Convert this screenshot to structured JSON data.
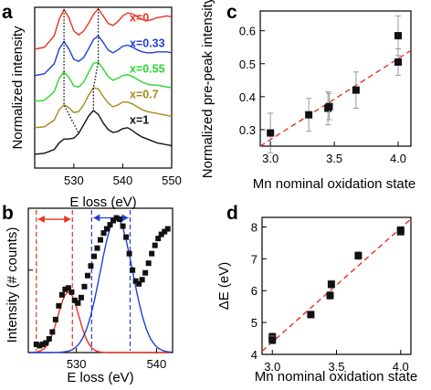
{
  "panels": {
    "a": {
      "letter": "a",
      "ylabel": "Normalized intensity",
      "xlabel": "E loss (eV)",
      "xticks": [
        "530",
        "540",
        "550"
      ]
    },
    "b": {
      "letter": "b",
      "ylabel": "Intensity (# counts)",
      "xlabel": "E loss (eV)",
      "xticks": [
        "530",
        "540"
      ]
    },
    "c": {
      "letter": "c",
      "ylabel": "Normalized pre-peak intensity",
      "xlabel": "Mn nominal oxidation state",
      "xticks": [
        "3.0",
        "3.5",
        "4.0"
      ],
      "yticks": [
        "0.3",
        "0.4",
        "0.5",
        "0.6"
      ]
    },
    "d": {
      "letter": "d",
      "ylabel": "ΔE (eV)",
      "xlabel": "Mn nominal oxidation state",
      "xticks": [
        "3.0",
        "3.5",
        "4.0"
      ],
      "yticks": [
        "4",
        "5",
        "6",
        "7",
        "8"
      ]
    }
  },
  "chart_data": [
    {
      "panel": "a",
      "type": "line",
      "title": "",
      "xlabel": "E loss (eV)",
      "ylabel": "Normalized intensity",
      "xlim": [
        522,
        550
      ],
      "series": [
        {
          "name": "x=0",
          "color": "#e8321e",
          "offset": 4,
          "x": [
            522,
            524,
            526,
            527,
            528,
            529,
            530,
            531,
            532,
            533,
            534,
            535,
            536,
            537,
            538,
            539,
            540,
            541,
            542,
            543,
            544,
            545,
            546,
            547,
            548,
            549,
            550
          ],
          "y": [
            0.12,
            0.16,
            0.4,
            0.75,
            0.95,
            0.78,
            0.5,
            0.42,
            0.5,
            0.66,
            0.85,
            0.97,
            0.82,
            0.66,
            0.62,
            0.7,
            0.82,
            0.88,
            0.86,
            0.8,
            0.74,
            0.72,
            0.74,
            0.78,
            0.8,
            0.82,
            0.8
          ]
        },
        {
          "name": "x=0.33",
          "color": "#1f3fd6",
          "offset": 3,
          "x": [
            522,
            524,
            526,
            527,
            528,
            529,
            530,
            531,
            532,
            533,
            534,
            535,
            536,
            537,
            538,
            539,
            540,
            541,
            542,
            543,
            544,
            545,
            546,
            547,
            548,
            549,
            550
          ],
          "y": [
            0.1,
            0.14,
            0.35,
            0.66,
            0.82,
            0.66,
            0.44,
            0.4,
            0.48,
            0.66,
            0.86,
            0.94,
            0.8,
            0.64,
            0.58,
            0.64,
            0.72,
            0.74,
            0.7,
            0.64,
            0.6,
            0.58,
            0.58,
            0.6,
            0.6,
            0.6,
            0.58
          ]
        },
        {
          "name": "x=0.55",
          "color": "#2bd62b",
          "offset": 2,
          "x": [
            522,
            524,
            526,
            527,
            528,
            529,
            530,
            531,
            532,
            533,
            534,
            535,
            536,
            537,
            538,
            539,
            540,
            541,
            542,
            543,
            544,
            545,
            546,
            547,
            548,
            549,
            550
          ],
          "y": [
            0.1,
            0.12,
            0.3,
            0.58,
            0.72,
            0.6,
            0.42,
            0.4,
            0.5,
            0.7,
            0.9,
            0.92,
            0.78,
            0.62,
            0.54,
            0.58,
            0.64,
            0.66,
            0.62,
            0.56,
            0.5,
            0.46,
            0.44,
            0.44,
            0.42,
            0.4,
            0.38
          ]
        },
        {
          "name": "x=0.7",
          "color": "#a58a1c",
          "offset": 1,
          "x": [
            522,
            524,
            526,
            527,
            528,
            529,
            530,
            531,
            532,
            533,
            534,
            535,
            536,
            537,
            538,
            539,
            540,
            541,
            542,
            543,
            544,
            545,
            546,
            547,
            548,
            549,
            550
          ],
          "y": [
            0.08,
            0.1,
            0.24,
            0.46,
            0.56,
            0.5,
            0.4,
            0.42,
            0.56,
            0.76,
            0.92,
            0.9,
            0.74,
            0.6,
            0.52,
            0.56,
            0.62,
            0.62,
            0.58,
            0.52,
            0.46,
            0.42,
            0.4,
            0.38,
            0.36,
            0.34,
            0.32
          ]
        },
        {
          "name": "x=1",
          "color": "#111111",
          "offset": 0,
          "x": [
            522,
            524,
            526,
            527,
            528,
            529,
            530,
            531,
            532,
            533,
            534,
            535,
            536,
            537,
            538,
            539,
            540,
            541,
            542,
            543,
            544,
            545,
            546,
            547,
            548,
            549,
            550
          ],
          "y": [
            0.06,
            0.08,
            0.16,
            0.3,
            0.38,
            0.38,
            0.4,
            0.5,
            0.68,
            0.86,
            0.98,
            0.9,
            0.72,
            0.58,
            0.52,
            0.54,
            0.6,
            0.62,
            0.56,
            0.48,
            0.42,
            0.38,
            0.34,
            0.3,
            0.28,
            0.26,
            0.24
          ]
        }
      ]
    },
    {
      "panel": "b",
      "type": "scatter",
      "title": "",
      "xlabel": "E loss (eV)",
      "ylabel": "Intensity (# counts)",
      "xlim": [
        524,
        542
      ],
      "measured": {
        "color": "#111111",
        "x": [
          525,
          525.4,
          525.8,
          526.2,
          526.6,
          527,
          527.4,
          527.8,
          528.2,
          528.6,
          529,
          529.4,
          529.8,
          530.2,
          530.6,
          531,
          531.4,
          531.8,
          532.2,
          532.6,
          533,
          533.4,
          533.8,
          534.2,
          534.6,
          535,
          535.4,
          535.8,
          536.2,
          536.6,
          537,
          537.4,
          537.8,
          538.2,
          538.6,
          539,
          539.4,
          539.8,
          540.2,
          540.6,
          541,
          541.4
        ],
        "y": [
          0.06,
          0.05,
          0.06,
          0.07,
          0.1,
          0.15,
          0.24,
          0.34,
          0.42,
          0.46,
          0.47,
          0.44,
          0.38,
          0.36,
          0.4,
          0.48,
          0.56,
          0.63,
          0.7,
          0.76,
          0.82,
          0.87,
          0.9,
          0.93,
          0.96,
          0.98,
          0.97,
          0.92,
          0.84,
          0.72,
          0.6,
          0.52,
          0.5,
          0.53,
          0.58,
          0.65,
          0.72,
          0.78,
          0.83,
          0.86,
          0.88,
          0.9
        ]
      },
      "fits": [
        {
          "color": "#e8321e",
          "center": 529.0,
          "sigma": 1.3,
          "amplitude": 0.44
        },
        {
          "color": "#1f3fd6",
          "center": 535.0,
          "sigma": 2.0,
          "amplitude": 0.98
        }
      ],
      "markers": [
        {
          "color": "#e8321e",
          "x1": 525.0,
          "x2": 529.5
        },
        {
          "color": "#1f3fd6",
          "x1": 531.9,
          "x2": 536.7
        }
      ]
    },
    {
      "panel": "c",
      "type": "scatter",
      "title": "",
      "xlabel": "Mn nominal oxidation state",
      "ylabel": "Normalized pre-peak intensity",
      "xlim": [
        2.92,
        4.1
      ],
      "ylim": [
        0.25,
        0.66
      ],
      "points": [
        {
          "x": 3.0,
          "y": 0.29,
          "err": 0.06
        },
        {
          "x": 3.3,
          "y": 0.345,
          "err": 0.05
        },
        {
          "x": 3.45,
          "y": 0.365,
          "err": 0.05
        },
        {
          "x": 3.46,
          "y": 0.37,
          "err": 0.04
        },
        {
          "x": 3.67,
          "y": 0.42,
          "err": 0.055
        },
        {
          "x": 4.0,
          "y": 0.585,
          "err": 0.06
        },
        {
          "x": 4.0,
          "y": 0.505,
          "err": 0.04
        }
      ],
      "fit": {
        "color": "#e8321e",
        "x1": 2.92,
        "y1": 0.25,
        "x2": 4.1,
        "y2": 0.54
      }
    },
    {
      "panel": "d",
      "type": "scatter",
      "title": "",
      "xlabel": "Mn nominal oxidation state",
      "ylabel": "ΔE (eV)",
      "xlim": [
        2.92,
        4.08
      ],
      "ylim": [
        4.0,
        8.3
      ],
      "points": [
        {
          "x": 3.0,
          "y": 4.55,
          "err": 0.12
        },
        {
          "x": 3.0,
          "y": 4.45,
          "err": 0.12
        },
        {
          "x": 3.3,
          "y": 5.25,
          "err": 0.1
        },
        {
          "x": 3.45,
          "y": 5.85,
          "err": 0.12
        },
        {
          "x": 3.46,
          "y": 6.2,
          "err": 0.12
        },
        {
          "x": 3.67,
          "y": 7.1,
          "err": 0.12
        },
        {
          "x": 4.0,
          "y": 7.85,
          "err": 0.08
        },
        {
          "x": 4.0,
          "y": 7.9,
          "err": 0.1
        }
      ],
      "fit": {
        "color": "#e8321e",
        "x1": 2.92,
        "y1": 4.1,
        "x2": 4.08,
        "y2": 8.25
      }
    }
  ]
}
